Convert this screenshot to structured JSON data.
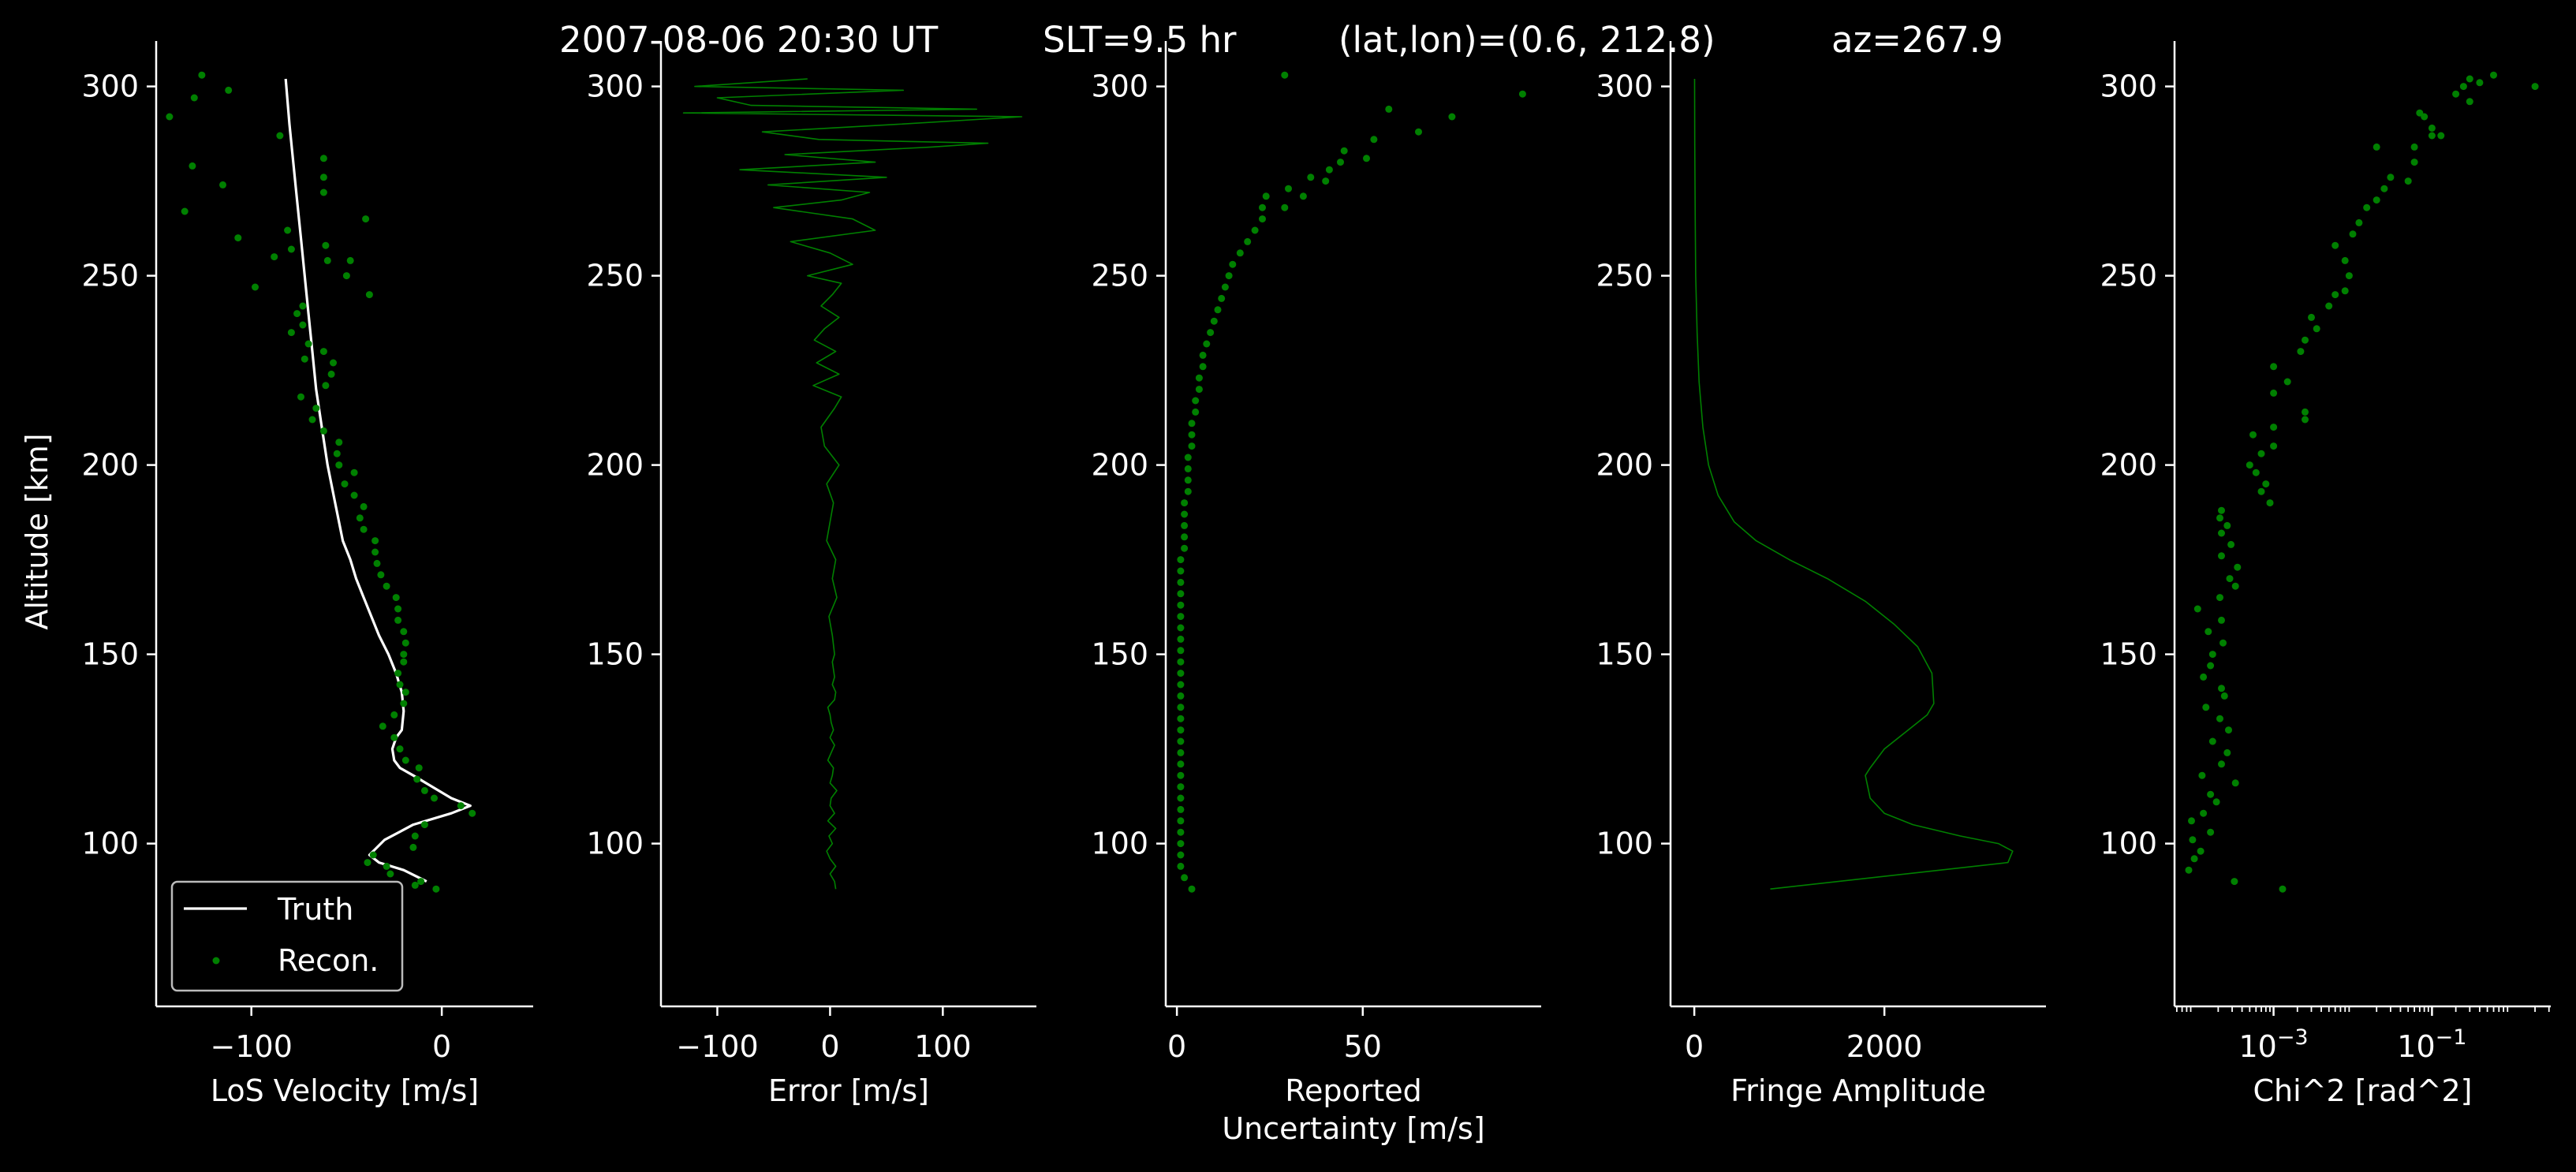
{
  "title": {
    "time": "2007-08-06 20:30 UT",
    "slt": "SLT=9.5 hr",
    "latlon": "(lat,lon)=(0.6, 212.8)",
    "az": "az=267.9"
  },
  "colors": {
    "background": "#000000",
    "truth": "#ffffff",
    "recon": "#008000",
    "axis": "#ffffff"
  },
  "chart_data": [
    {
      "type": "line",
      "xlabel": "LoS Velocity [m/s]",
      "ylabel": "Altitude [km]",
      "xlim": [
        -150,
        48
      ],
      "ylim": [
        57,
        312
      ],
      "xticks": [
        -100,
        0
      ],
      "xticklabels": [
        "−100",
        "0"
      ],
      "yticks": [
        100,
        150,
        200,
        250,
        300
      ],
      "yticklabels": [
        "100",
        "150",
        "200",
        "250",
        "300"
      ],
      "legend": {
        "position": "lower-left",
        "entries": [
          "Truth",
          "Recon."
        ]
      },
      "series": [
        {
          "name": "Truth",
          "style": "line",
          "x": [
            -82,
            -80,
            -78,
            -76,
            -74,
            -72,
            -70,
            -68,
            -66,
            -63,
            -60,
            -56,
            -52,
            -48,
            -45,
            -41,
            -37,
            -33,
            -28,
            -24,
            -21,
            -20,
            -21,
            -24,
            -26,
            -25,
            -22,
            -15,
            -5,
            5,
            15,
            5,
            -15,
            -30,
            -38,
            -33,
            -20,
            -8
          ],
          "y": [
            302,
            290,
            280,
            270,
            260,
            250,
            240,
            230,
            220,
            210,
            200,
            190,
            180,
            175,
            170,
            165,
            160,
            155,
            150,
            145,
            140,
            135,
            130,
            128,
            125,
            122,
            120,
            118,
            115,
            112,
            110,
            108,
            105,
            101,
            97,
            95,
            93,
            90
          ]
        },
        {
          "name": "Recon.",
          "style": "scatter",
          "x": [
            -126,
            -112,
            -143,
            -130,
            -85,
            -131,
            -115,
            -62,
            -62,
            -135,
            -62,
            -40,
            -107,
            -81,
            -79,
            -48,
            -88,
            -50,
            -60,
            -98,
            -61,
            -38,
            -73,
            -76,
            -73,
            -79,
            -70,
            -62,
            -72,
            -57,
            -58,
            -61,
            -74,
            -66,
            -68,
            -62,
            -54,
            -55,
            -54,
            -46,
            -51,
            -46,
            -41,
            -43,
            -41,
            -35,
            -35,
            -34,
            -32,
            -29,
            -24,
            -23,
            -23,
            -20,
            -19,
            -20,
            -20,
            -23,
            -22,
            -19,
            -20,
            -25,
            -31,
            -25,
            -22,
            -19,
            -12,
            -13,
            -9,
            -4,
            10,
            16,
            -9,
            -14,
            -15,
            -36,
            -39,
            -29,
            -27,
            -11,
            -14,
            -3
          ],
          "y": [
            303,
            299,
            292,
            297,
            287,
            279,
            274,
            281,
            276,
            267,
            272,
            265,
            260,
            262,
            257,
            254,
            255,
            250,
            254,
            247,
            258,
            245,
            242,
            240,
            237,
            235,
            232,
            230,
            228,
            227,
            224,
            221,
            218,
            215,
            212,
            209,
            206,
            203,
            200,
            198,
            195,
            192,
            189,
            186,
            183,
            180,
            177,
            174,
            171,
            168,
            165,
            162,
            159,
            156,
            153,
            150,
            148,
            145,
            142,
            140,
            137,
            134,
            131,
            128,
            125,
            122,
            120,
            117,
            114,
            112,
            110,
            108,
            105,
            102,
            99,
            97,
            95,
            94,
            92,
            90,
            89,
            88
          ]
        }
      ]
    },
    {
      "type": "line",
      "xlabel": "Error [m/s]",
      "xlim": [
        -150,
        183
      ],
      "ylim": [
        57,
        312
      ],
      "xticks": [
        -100,
        0,
        100
      ],
      "xticklabels": [
        "−100",
        "0",
        "100"
      ],
      "yticks": [
        100,
        150,
        200,
        250,
        300
      ],
      "yticklabels": [
        "100",
        "150",
        "200",
        "250",
        "300"
      ],
      "series": [
        {
          "name": "",
          "style": "line",
          "x": [
            5,
            4,
            0,
            5,
            0,
            -3,
            2,
            -1,
            5,
            -2,
            4,
            0,
            1,
            6,
            0,
            2,
            3,
            -2,
            1,
            4,
            0,
            3,
            1,
            0,
            -2,
            4,
            5,
            2,
            4,
            3,
            2,
            4,
            2,
            -1,
            6,
            2,
            5,
            -3,
            0,
            3,
            -3,
            8,
            -5,
            -8,
            4,
            10,
            -15,
            8,
            -12,
            5,
            -14,
            -5,
            8,
            -8,
            2,
            10,
            -20,
            20,
            0,
            -35,
            40,
            20,
            -50,
            10,
            35,
            -55,
            50,
            -80,
            40,
            -40,
            90,
            140,
            -10,
            -60,
            60,
            170,
            -130,
            130,
            -70,
            -100,
            65,
            -120,
            -20
          ],
          "y": [
            88,
            90,
            92,
            94,
            96,
            98,
            100,
            102,
            104,
            106,
            108,
            110,
            112,
            114,
            116,
            118,
            120,
            122,
            124,
            126,
            128,
            130,
            132,
            134,
            136,
            138,
            140,
            142,
            144,
            146,
            148,
            150,
            155,
            160,
            165,
            170,
            175,
            180,
            185,
            190,
            195,
            200,
            205,
            210,
            215,
            218,
            221,
            224,
            227,
            230,
            233,
            236,
            239,
            242,
            245,
            248,
            250,
            253,
            256,
            259,
            262,
            265,
            268,
            270,
            272,
            274,
            276,
            278,
            280,
            282,
            284,
            285,
            286,
            288,
            290,
            292,
            293,
            294,
            295,
            297,
            299,
            300,
            302
          ]
        }
      ]
    },
    {
      "type": "scatter",
      "xlabel": "Reported\nUncertainty [m/s]",
      "xlim": [
        -3,
        98
      ],
      "ylim": [
        57,
        312
      ],
      "xticks": [
        0,
        50
      ],
      "xticklabels": [
        "0",
        "50"
      ],
      "yticks": [
        100,
        150,
        200,
        250,
        300
      ],
      "yticklabels": [
        "100",
        "150",
        "200",
        "250",
        "300"
      ],
      "series": [
        {
          "name": "",
          "style": "scatter",
          "x": [
            4,
            2,
            1,
            1,
            1,
            1,
            1,
            1,
            1,
            1,
            1,
            1,
            1,
            1,
            1,
            1,
            1,
            1,
            1,
            1,
            1,
            1,
            1,
            1,
            1,
            1,
            1,
            1,
            1,
            1,
            2,
            2,
            2,
            2,
            2,
            3,
            3,
            3,
            3,
            4,
            4,
            4,
            5,
            5,
            6,
            6,
            7,
            7,
            8,
            9,
            10,
            11,
            12,
            13,
            14,
            15,
            17,
            19,
            21,
            23,
            23,
            24,
            29,
            30,
            34,
            36,
            41,
            40,
            45,
            44,
            53,
            51,
            57,
            65,
            74,
            93,
            29
          ],
          "y": [
            88,
            91,
            94,
            97,
            100,
            103,
            106,
            109,
            112,
            115,
            118,
            121,
            124,
            127,
            130,
            133,
            136,
            139,
            142,
            145,
            148,
            151,
            154,
            157,
            160,
            163,
            166,
            169,
            172,
            175,
            178,
            181,
            184,
            187,
            190,
            193,
            196,
            199,
            202,
            205,
            208,
            211,
            214,
            217,
            220,
            223,
            226,
            229,
            232,
            235,
            238,
            241,
            244,
            247,
            250,
            253,
            256,
            259,
            262,
            265,
            268,
            271,
            268,
            273,
            271,
            276,
            278,
            275,
            283,
            280,
            286,
            281,
            294,
            288,
            292,
            298,
            303
          ]
        }
      ]
    },
    {
      "type": "line",
      "xlabel": "Fringe Amplitude",
      "xlim": [
        -250,
        3700
      ],
      "ylim": [
        57,
        312
      ],
      "xticks": [
        0,
        2000
      ],
      "xticklabels": [
        "0",
        "2000"
      ],
      "yticks": [
        100,
        150,
        200,
        250,
        300
      ],
      "yticklabels": [
        "100",
        "150",
        "200",
        "250",
        "300"
      ],
      "series": [
        {
          "name": "",
          "style": "line",
          "x": [
            800,
            3300,
            3350,
            3200,
            2800,
            2300,
            2000,
            1850,
            1800,
            1850,
            2000,
            2250,
            2450,
            2520,
            2500,
            2350,
            2100,
            1800,
            1400,
            1000,
            650,
            420,
            250,
            150,
            90,
            50,
            30,
            15,
            10,
            5,
            3
          ],
          "y": [
            88,
            95,
            98,
            100,
            102,
            105,
            108,
            112,
            118,
            120,
            125,
            130,
            134,
            137,
            145,
            152,
            158,
            164,
            170,
            175,
            180,
            185,
            192,
            200,
            210,
            222,
            235,
            250,
            265,
            285,
            302
          ]
        }
      ]
    },
    {
      "type": "scatter",
      "xlabel": "Chi^2 [rad^2]",
      "xscale": "log",
      "xlim": [
        5.62e-05,
        3.16
      ],
      "ylim": [
        57,
        312
      ],
      "xticks": [
        0.001,
        0.1
      ],
      "xticklabels": [
        "10",
        "10"
      ],
      "xtickexponents": [
        "−3",
        "−1"
      ],
      "yticks": [
        100,
        150,
        200,
        250,
        300
      ],
      "yticklabels": [
        "100",
        "150",
        "200",
        "250",
        "300"
      ],
      "series": [
        {
          "name": "",
          "style": "scatter",
          "x": [
            0.0013,
            0.00032,
            8.5e-05,
            0.0001,
            0.00012,
            9.5e-05,
            0.00016,
            9.2e-05,
            0.00013,
            0.00019,
            0.00016,
            0.00033,
            0.000125,
            0.00022,
            0.00026,
            0.00017,
            0.00027,
            0.00021,
            0.00014,
            0.00024,
            0.00022,
            0.00013,
            0.00016,
            0.00017,
            0.00023,
            0.00015,
            0.00022,
            0.00011,
            0.00021,
            0.00033,
            0.00028,
            0.00035,
            0.00022,
            0.00029,
            0.00022,
            0.00026,
            0.00021,
            0.00022,
            0.0009,
            0.0007,
            0.0008,
            0.0006,
            0.0005,
            0.0007,
            0.00055,
            0.001,
            0.001,
            0.0025,
            0.0025,
            0.001,
            0.0015,
            0.001,
            0.0022,
            0.0025,
            0.0035,
            0.003,
            0.005,
            0.008,
            0.006,
            0.009,
            0.008,
            0.006,
            0.01,
            0.012,
            0.015,
            0.02,
            0.025,
            0.03,
            0.05,
            0.06,
            0.06,
            0.1,
            0.1,
            0.13,
            0.07,
            0.08,
            0.2,
            0.3,
            0.3,
            0.4,
            0.25,
            0.6,
            2.0,
            0.02
          ],
          "y": [
            88,
            90,
            93,
            96,
            98,
            101,
            103,
            106,
            108,
            111,
            113,
            116,
            118,
            121,
            124,
            127,
            130,
            133,
            136,
            139,
            141,
            144,
            147,
            150,
            153,
            156,
            159,
            162,
            165,
            168,
            170,
            173,
            176,
            179,
            182,
            184,
            186,
            188,
            190,
            193,
            195,
            198,
            200,
            203,
            208,
            205,
            210,
            212,
            214,
            219,
            222,
            226,
            230,
            233,
            236,
            239,
            242,
            246,
            245,
            250,
            254,
            258,
            261,
            264,
            268,
            270,
            273,
            276,
            275,
            280,
            284,
            287,
            289,
            287,
            293,
            292,
            298,
            296,
            302,
            301,
            300,
            303,
            300,
            284
          ]
        }
      ]
    }
  ]
}
